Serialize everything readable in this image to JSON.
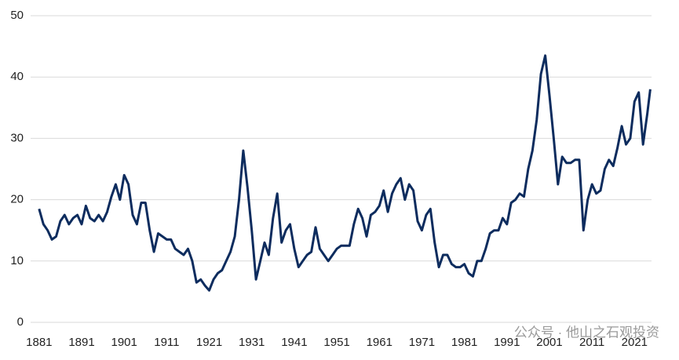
{
  "chart_data": {
    "type": "line",
    "x": [
      1881,
      1882,
      1883,
      1884,
      1885,
      1886,
      1887,
      1888,
      1889,
      1890,
      1891,
      1892,
      1893,
      1894,
      1895,
      1896,
      1897,
      1898,
      1899,
      1900,
      1901,
      1902,
      1903,
      1904,
      1905,
      1906,
      1907,
      1908,
      1909,
      1910,
      1911,
      1912,
      1913,
      1914,
      1915,
      1916,
      1917,
      1918,
      1919,
      1920,
      1921,
      1922,
      1923,
      1924,
      1925,
      1926,
      1927,
      1928,
      1929,
      1930,
      1931,
      1932,
      1933,
      1934,
      1935,
      1936,
      1937,
      1938,
      1939,
      1940,
      1941,
      1942,
      1943,
      1944,
      1945,
      1946,
      1947,
      1948,
      1949,
      1950,
      1951,
      1952,
      1953,
      1954,
      1955,
      1956,
      1957,
      1958,
      1959,
      1960,
      1961,
      1962,
      1963,
      1964,
      1965,
      1966,
      1967,
      1968,
      1969,
      1970,
      1971,
      1972,
      1973,
      1974,
      1975,
      1976,
      1977,
      1978,
      1979,
      1980,
      1981,
      1982,
      1983,
      1984,
      1985,
      1986,
      1987,
      1988,
      1989,
      1990,
      1991,
      1992,
      1993,
      1994,
      1995,
      1996,
      1997,
      1998,
      1999,
      2000,
      2001,
      2002,
      2003,
      2004,
      2005,
      2006,
      2007,
      2008,
      2009,
      2010,
      2011,
      2012,
      2013,
      2014,
      2015,
      2016,
      2017,
      2018,
      2019,
      2020,
      2021,
      2022,
      2023,
      2024,
      2024.7
    ],
    "series": [
      {
        "color": "#0d2c5e",
        "values": [
          18.5,
          16,
          15,
          13.5,
          14,
          16.5,
          17.5,
          16,
          17,
          17.5,
          16,
          19,
          17,
          16.5,
          17.5,
          16.5,
          18,
          20.5,
          22.5,
          20,
          24,
          22.5,
          17.5,
          16,
          19.5,
          19.5,
          15,
          11.5,
          14.5,
          14,
          13.5,
          13.5,
          12,
          11.5,
          11,
          12,
          10,
          6.5,
          7,
          6,
          5.2,
          7,
          8,
          8.5,
          10,
          11.5,
          14,
          20,
          28,
          22,
          15,
          7,
          10,
          13,
          11,
          17,
          21,
          13,
          15,
          16,
          12,
          9,
          10,
          11,
          11.5,
          15.5,
          12,
          11,
          10,
          11,
          12,
          12.5,
          12.5,
          12.5,
          16,
          18.5,
          17,
          14,
          17.5,
          18,
          19,
          21.5,
          18,
          21,
          22.5,
          23.5,
          20,
          22.5,
          21.5,
          16.5,
          15,
          17.5,
          18.5,
          13,
          9,
          11,
          11,
          9.5,
          9,
          9,
          9.5,
          8,
          7.5,
          10,
          10,
          12,
          14.5,
          15,
          15,
          17,
          16,
          19.5,
          20,
          21,
          20.5,
          25,
          28,
          33,
          40.5,
          43.5,
          37,
          30,
          22.5,
          27,
          26,
          26,
          26.5,
          26.5,
          15,
          20,
          22.5,
          21,
          21.5,
          25,
          26.5,
          25.5,
          28.5,
          32,
          29,
          30,
          36,
          37.5,
          29,
          34,
          38
        ]
      }
    ],
    "xlim": [
      1879,
      2025
    ],
    "xticks": [
      1881,
      1891,
      1901,
      1911,
      1921,
      1931,
      1941,
      1951,
      1961,
      1971,
      1981,
      1991,
      2001,
      2011,
      2021
    ],
    "ylim": [
      0,
      50
    ],
    "yticks": [
      0,
      10,
      20,
      30,
      40,
      50
    ],
    "grid": true,
    "watermark": "公众号 · 他山之石观投资"
  }
}
